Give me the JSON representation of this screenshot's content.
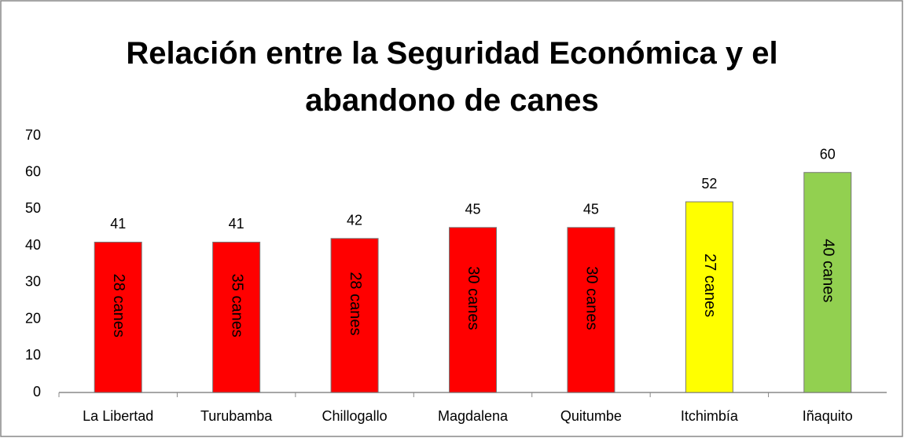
{
  "chart_data": {
    "type": "bar",
    "title": "Relación entre la Seguridad Económica y el abandono de canes",
    "categories": [
      "La Libertad",
      "Turubamba",
      "Chillogallo",
      "Magdalena",
      "Quitumbe",
      "Itchimbía",
      "Iñaquito"
    ],
    "values": [
      41,
      41,
      42,
      45,
      45,
      52,
      60
    ],
    "colors": [
      "#ff0000",
      "#ff0000",
      "#ff0000",
      "#ff0000",
      "#ff0000",
      "#ffff00",
      "#92d050"
    ],
    "bar_labels": [
      "28 canes",
      "35 canes",
      "28 canes",
      "30 canes",
      "30 canes",
      "27 canes",
      "40 canes"
    ],
    "ylim": [
      0,
      70
    ],
    "yticks": [
      0,
      10,
      20,
      30,
      40,
      50,
      60,
      70
    ],
    "grid": false
  }
}
